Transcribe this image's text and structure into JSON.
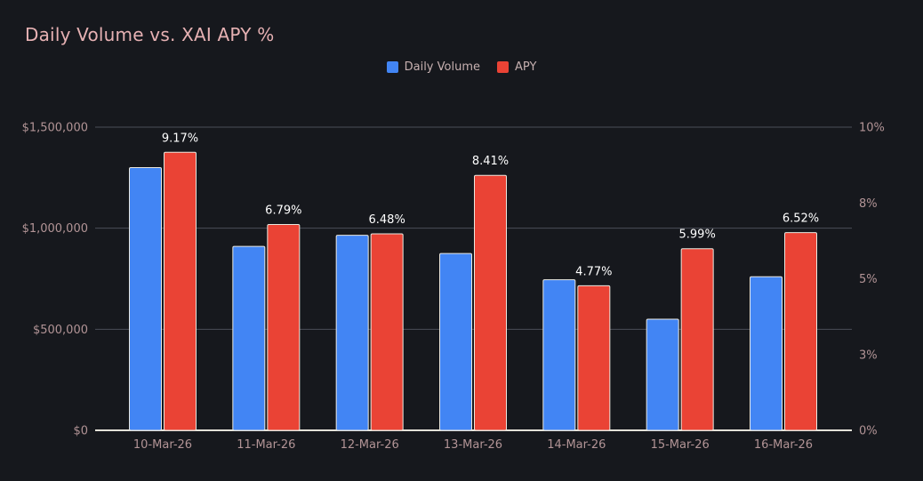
{
  "title": "Daily Volume vs. XAI APY %",
  "colors": {
    "background": "#16181d",
    "title": "#e6b1b3",
    "axis_label": "#b29496",
    "grid": "#4b4e57",
    "axis_line": "#e3e1d8",
    "bar_stroke": "#e9e7df",
    "data_label": "#ffffff",
    "legend_text": "#c6b0b0",
    "volume_blue": "#4285f4",
    "apy_red": "#ea4335"
  },
  "legend": {
    "items": [
      {
        "label": "Daily Volume",
        "color": "#4285f4"
      },
      {
        "label": "APY",
        "color": "#ea4335"
      }
    ]
  },
  "chart_data": {
    "type": "bar",
    "title": "Daily Volume vs. XAI APY %",
    "categories": [
      "10-Mar-26",
      "11-Mar-26",
      "12-Mar-26",
      "13-Mar-26",
      "14-Mar-26",
      "15-Mar-26",
      "16-Mar-26"
    ],
    "series": [
      {
        "name": "Daily Volume",
        "axis": "left",
        "color": "#4285f4",
        "values": [
          1300000,
          910000,
          965000,
          875000,
          745000,
          550000,
          760000
        ]
      },
      {
        "name": "APY",
        "axis": "right",
        "color": "#ea4335",
        "values": [
          9.17,
          6.79,
          6.48,
          8.41,
          4.77,
          5.99,
          6.52
        ],
        "labels": [
          "9.17%",
          "6.79%",
          "6.48%",
          "8.41%",
          "4.77%",
          "5.99%",
          "6.52%"
        ]
      }
    ],
    "left_axis": {
      "range": [
        0,
        1500000
      ],
      "ticks": [
        0,
        500000,
        1000000,
        1500000
      ],
      "labels": [
        "$0",
        "$500,000",
        "$1,000,000",
        "$1,500,000"
      ]
    },
    "right_axis": {
      "range": [
        0,
        10
      ],
      "ticks": [
        0,
        2.5,
        5,
        7.5,
        10
      ],
      "labels": [
        "0%",
        "3%",
        "5%",
        "8%",
        "10%"
      ]
    },
    "grid": true,
    "legend_position": "top-center"
  }
}
